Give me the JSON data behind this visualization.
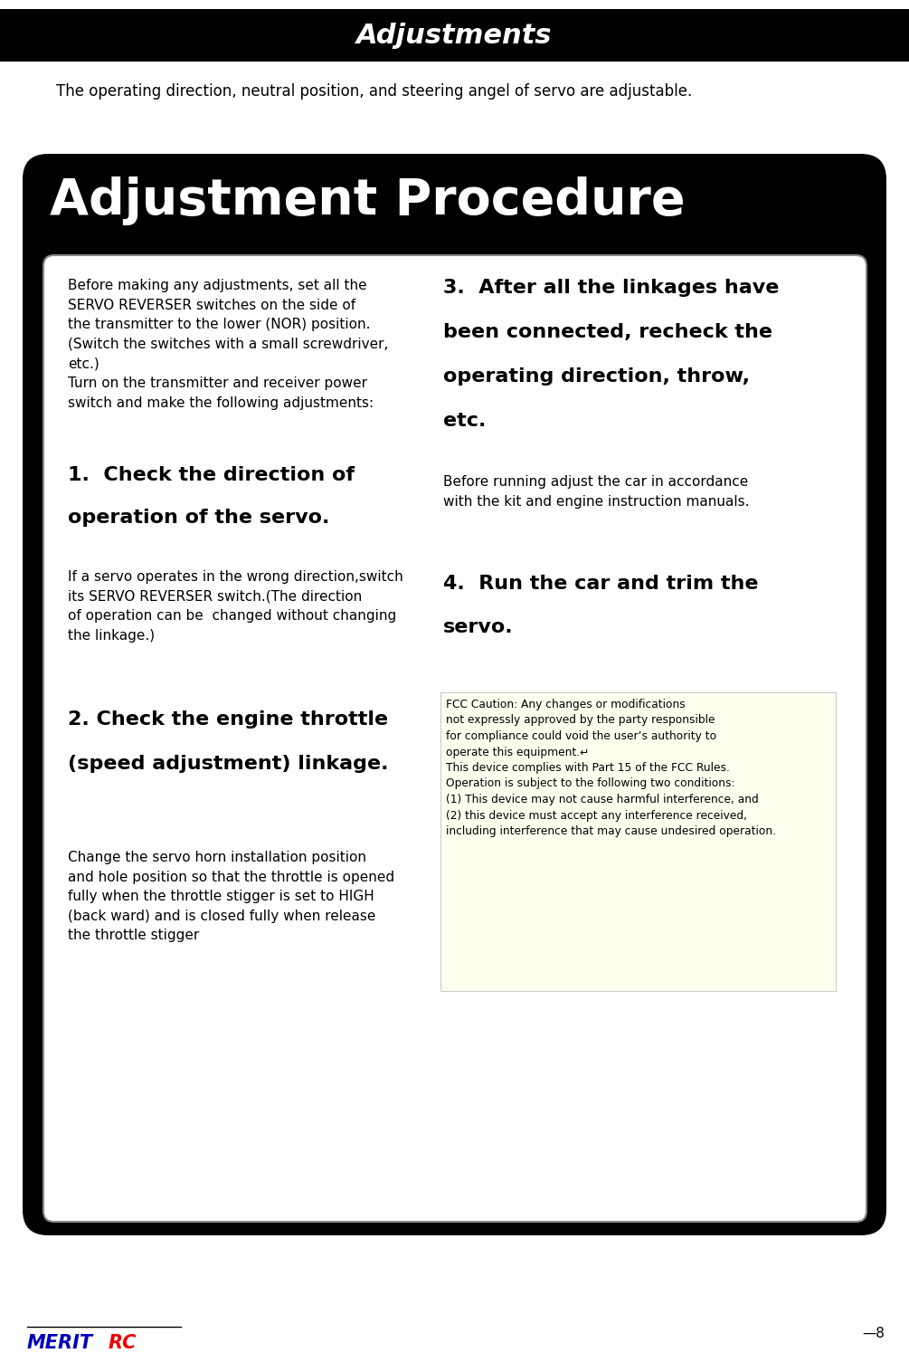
{
  "page_bg": "#ffffff",
  "header_bg": "#000000",
  "header_text": "Adjustments",
  "header_text_color": "#ffffff",
  "subtitle": "The operating direction, neutral position, and steering angel of servo are adjustable.",
  "big_box_bg": "#000000",
  "big_box_title": "Adjustment Procedure",
  "inner_box_bg": "#ffffff",
  "intro_text": "Before making any adjustments, set all the\nSERVO REVERSER switches on the side of\nthe transmitter to the lower (NOR) position.\n(Switch the switches with a small screwdriver,\netc.)\nTurn on the transmitter and receiver power\nswitch and make the following adjustments:",
  "step1_title": "1.  Check the direction of\n\noperation of the servo.",
  "step1_body": "If a servo operates in the wrong direction,switch\nits SERVO REVERSER switch.(The direction\nof operation can be  changed without changing\nthe linkage.)",
  "step2_title": "2. Check the engine throttle\n\n(speed adjustment) linkage.",
  "step2_body": "Change the servo horn installation position\nand hole position so that the throttle is opened\nfully when the throttle stigger is set to HIGH\n(back ward) and is closed fully when release\nthe throttle stigger",
  "step3_title": "3.  After all the linkages have\n\nbeen connected, recheck the\n\noperating direction, throw,\n\netc.",
  "step3_body": "Before running adjust the car in accordance\nwith the kit and engine instruction manuals.",
  "step4_title": "4.  Run the car and trim the\n\nservo.",
  "fcc_text": "FCC Caution: Any changes or modifications\nnot expressly approved by the party responsible\nfor compliance could void the user’s authority to\noperate this equipment.↵\nThis device complies with Part 15 of the FCC Rules.\nOperation is subject to the following two conditions:\n(1) This device may not cause harmful interference, and\n(2) this device must accept any interference received,\nincluding interference that may cause undesired operation.",
  "fcc_bg": "#fffff0",
  "footer_merit_blue": "#0000bb",
  "footer_merit_red": "#ee0000",
  "footer_page": "—8"
}
